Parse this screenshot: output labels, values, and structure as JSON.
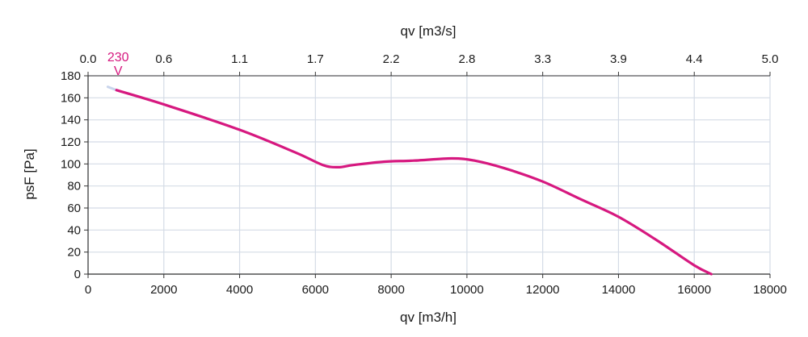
{
  "chart_data": {
    "type": "line",
    "title": "",
    "xlabel": "qv [m3/h]",
    "x2label": "qv [m3/s]",
    "ylabel": "psF [Pa]",
    "xlim": [
      0,
      18000
    ],
    "ylim": [
      0,
      180
    ],
    "x_ticks": [
      "0",
      "2000",
      "4000",
      "6000",
      "8000",
      "10000",
      "12000",
      "14000",
      "16000",
      "18000"
    ],
    "x2_ticks": [
      "0.0",
      "0.6",
      "1.1",
      "1.7",
      "2.2",
      "2.8",
      "3.3",
      "3.9",
      "4.4",
      "5.0"
    ],
    "y_ticks": [
      "0",
      "20",
      "40",
      "60",
      "80",
      "100",
      "120",
      "140",
      "160",
      "180"
    ],
    "grid": true,
    "series": [
      {
        "name": "230 V",
        "color": "#d6187f",
        "x": [
          750,
          2000,
          4000,
          5500,
          6200,
          6600,
          7000,
          7800,
          8600,
          9600,
          10200,
          11000,
          12000,
          13000,
          14000,
          15000,
          16000,
          16450
        ],
        "y": [
          167,
          154,
          131,
          110,
          99,
          97,
          99,
          102,
          103,
          105,
          103,
          96,
          84,
          68,
          52,
          31,
          8,
          0
        ]
      }
    ],
    "extrapolation": {
      "color": "#c8d4ec",
      "x": [
        520,
        750
      ],
      "y": [
        170,
        167
      ]
    }
  }
}
